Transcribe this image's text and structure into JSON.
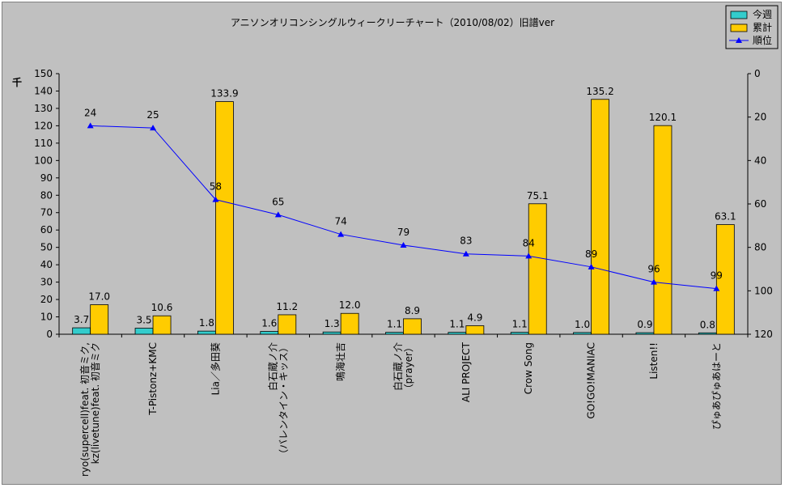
{
  "chart_data": {
    "type": "bar+line",
    "title": "アニソンオリコンシングルウィークリーチャート（2010/08/02）旧譜ver",
    "y_left_unit": "千",
    "y_left_range": [
      0,
      150
    ],
    "y_left_ticks": [
      0,
      10,
      20,
      30,
      40,
      50,
      60,
      70,
      80,
      90,
      100,
      110,
      120,
      130,
      140,
      150
    ],
    "y_right_range": [
      0,
      120
    ],
    "y_right_inverted": true,
    "y_right_ticks": [
      0,
      20,
      40,
      60,
      80,
      100,
      120
    ],
    "legend_position": "top-right",
    "grid": false,
    "categories": [
      "ryo(supercell)feat. 初音ミク,\nkz(livetune)feat. 初音ミク",
      "T-Pistonz+KMC",
      "Lia／多田葵",
      "白石蔵ノ介\n（バレンタイン・キッス）",
      "鳴海壮吉",
      "白石蔵ノ介\n（prayer）",
      "ALI PROJECT",
      "Crow Song",
      "GO!GO!MANIAC",
      "Listen!!",
      "ぴゅあぴゅあはーと"
    ],
    "series": [
      {
        "name": "今週",
        "type": "bar",
        "color": "#33cccc",
        "values": [
          3.7,
          3.5,
          1.8,
          1.6,
          1.3,
          1.1,
          1.1,
          1.1,
          1.0,
          0.9,
          0.8
        ],
        "labels": [
          "3.7",
          "3.5",
          "1.8",
          "1.6",
          "1.3",
          "1.1",
          "1.1",
          "1.1",
          "1.0",
          "0.9",
          "0.8"
        ]
      },
      {
        "name": "累計",
        "type": "bar",
        "color": "#ffcc00",
        "values": [
          17.0,
          10.6,
          133.9,
          11.2,
          12.0,
          8.9,
          4.9,
          75.1,
          135.2,
          120.1,
          63.1
        ],
        "labels": [
          "17.0",
          "10.6",
          "133.9",
          "11.2",
          "12.0",
          "8.9",
          "4.9",
          "75.1",
          "135.2",
          "120.1",
          "63.1"
        ]
      },
      {
        "name": "順位",
        "type": "line",
        "axis": "right",
        "color": "#0000ff",
        "values": [
          24,
          25,
          58,
          65,
          74,
          79,
          83,
          84,
          89,
          96,
          99
        ],
        "labels": [
          "24",
          "25",
          "58",
          "65",
          "74",
          "79",
          "83",
          "84",
          "89",
          "96",
          "99"
        ]
      }
    ]
  }
}
